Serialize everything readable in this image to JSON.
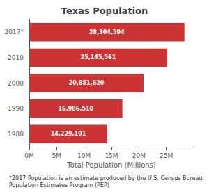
{
  "chart_data": {
    "type": "bar",
    "orientation": "horizontal",
    "title": "Texas Population",
    "categories": [
      "1980",
      "1990",
      "2000",
      "2010",
      "2017*"
    ],
    "values": [
      14229191,
      16986510,
      20851820,
      25145561,
      28304594
    ],
    "value_labels": [
      "14,229,191",
      "16,986,510",
      "20,851,820",
      "25,145,561",
      "28,304,594"
    ],
    "data_labels": true,
    "color": "#cc3333",
    "xlabel": "Total Population (Millions)",
    "xlim": [
      0,
      30000000
    ],
    "xticks": [
      {
        "value": 0,
        "label": "0M"
      },
      {
        "value": 5000000,
        "label": "5M"
      },
      {
        "value": 10000000,
        "label": "10M"
      },
      {
        "value": 15000000,
        "label": "15M"
      },
      {
        "value": 20000000,
        "label": "20M"
      },
      {
        "value": 25000000,
        "label": "25M"
      }
    ],
    "grid": false,
    "annotations": [
      "*2017 Population is an estimate produced by the U.S. Census Bureau Population Estimates Program (PEP)"
    ]
  }
}
